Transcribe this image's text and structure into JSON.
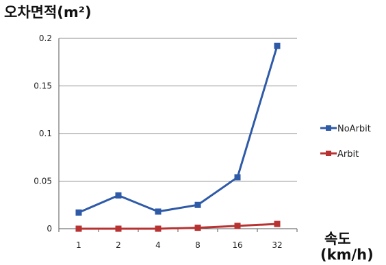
{
  "chart_data": {
    "type": "line",
    "ylabel": "오차면적(m²)",
    "xlabel": [
      "속도",
      "(km/h)"
    ],
    "categories": [
      "1",
      "2",
      "4",
      "8",
      "16",
      "32"
    ],
    "ylim": [
      0,
      0.2
    ],
    "yticks": [
      "0",
      "0.05",
      "0.1",
      "0.15",
      "0.2"
    ],
    "grid": true,
    "legend_position": "right",
    "series": [
      {
        "name": "NoArbit",
        "color": "#2e5aa8",
        "values": [
          0.017,
          0.035,
          0.018,
          0.025,
          0.054,
          0.192
        ]
      },
      {
        "name": "Arbit",
        "color": "#b83232",
        "values": [
          0.0,
          0.0,
          0.0,
          0.001,
          0.003,
          0.005
        ]
      }
    ]
  }
}
